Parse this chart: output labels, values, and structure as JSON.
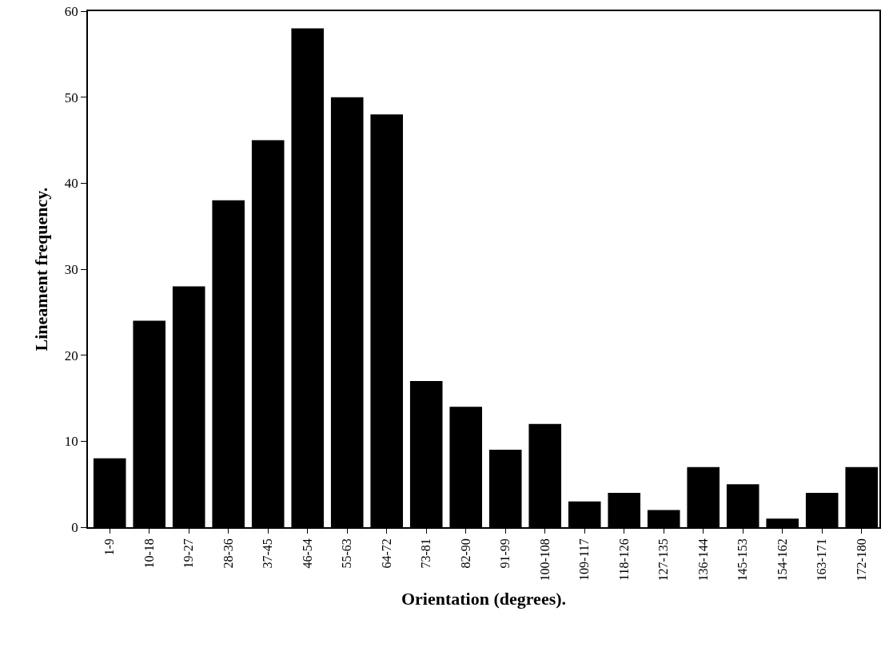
{
  "chart_data": {
    "type": "bar",
    "xlabel": "Orientation (degrees).",
    "ylabel": "Lineament frequency.",
    "categories": [
      "1-9",
      "10-18",
      "19-27",
      "28-36",
      "37-45",
      "46-54",
      "55-63",
      "64-72",
      "73-81",
      "82-90",
      "91-99",
      "100-108",
      "109-117",
      "118-126",
      "127-135",
      "136-144",
      "145-153",
      "154-162",
      "163-171",
      "172-180"
    ],
    "values": [
      8,
      24,
      28,
      38,
      45,
      58,
      50,
      48,
      17,
      14,
      9,
      12,
      3,
      4,
      2,
      7,
      5,
      1,
      4,
      7
    ],
    "color": "#000000",
    "ylim": [
      0,
      60
    ],
    "yticks": [
      0,
      10,
      20,
      30,
      40,
      50,
      60
    ]
  }
}
